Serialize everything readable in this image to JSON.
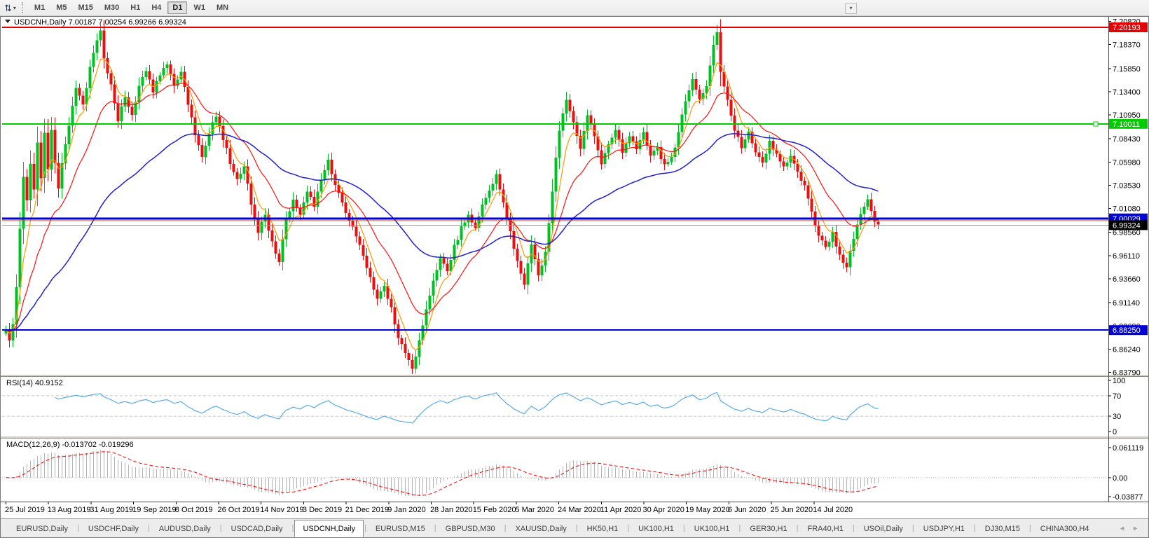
{
  "toolbar": {
    "timeframes": [
      "M1",
      "M5",
      "M15",
      "M30",
      "H1",
      "H4",
      "D1",
      "W1",
      "MN"
    ],
    "active_timeframe": "D1",
    "window_icon": "arrange-windows",
    "caret": "▾",
    "overflow_caret": "▾"
  },
  "window": {
    "title": "USDCNH,Daily",
    "ohlc_text": "7.00187 7.00254 6.99266 6.99324"
  },
  "chart_data": {
    "type": "candlestick",
    "symbol": "USDCNH",
    "timeframe": "Daily",
    "ohlc": {
      "open": 7.00187,
      "high": 7.00254,
      "low": 6.99266,
      "close": 6.99324
    },
    "ylim": [
      6.8379,
      7.2082
    ],
    "y_ticks": [
      "7.20820",
      "7.18370",
      "7.15850",
      "7.13400",
      "7.10950",
      "7.08430",
      "7.05980",
      "7.03530",
      "7.01080",
      "6.98560",
      "6.96110",
      "6.93660",
      "6.91140",
      "6.88690",
      "6.86240",
      "6.83790"
    ],
    "x_labels": [
      "25 Jul 2019",
      "13 Aug 2019",
      "31 Aug 2019",
      "19 Sep 2019",
      "8 Oct 2019",
      "26 Oct 2019",
      "14 Nov 2019",
      "3 Dec 2019",
      "21 Dec 2019",
      "9 Jan 2020",
      "28 Jan 2020",
      "15 Feb 2020",
      "5 Mar 2020",
      "24 Mar 2020",
      "11 Apr 2020",
      "30 Apr 2020",
      "19 May 2020",
      "6 Jun 2020",
      "25 Jun 2020",
      "14 Jul 2020"
    ],
    "h_lines": [
      {
        "price": 7.20193,
        "label": "7.20193",
        "color": "#e60000",
        "width": 2
      },
      {
        "price": 7.10011,
        "label": "7.10011",
        "color": "#00cc00",
        "width": 2,
        "handle": true
      },
      {
        "price": 7.00029,
        "label": "7.00029",
        "color": "#0000d8",
        "width": 3
      },
      {
        "price": 6.8825,
        "label": "6.88250",
        "color": "#0000d8",
        "width": 2
      }
    ],
    "ask_line": {
      "price": 6.998,
      "color": "#c05010",
      "width": 1
    },
    "bid_line": {
      "price": 6.99324,
      "label": "6.99324",
      "color": "#9a9a9a",
      "width": 1,
      "label_bg": "#000000"
    },
    "indicators": {
      "rsi": {
        "label": "RSI(14) 40.9152",
        "period": 14,
        "value": 40.9152,
        "levels": [
          70,
          30
        ],
        "scale": [
          "100",
          "70",
          "30",
          "0"
        ]
      },
      "macd": {
        "label": "MACD(12,26,9) -0.013702 -0.019296",
        "macd_value": -0.013702,
        "signal_value": -0.019296,
        "scale_max": "0.061119",
        "scale_mid": "0.00",
        "scale_min": "-0.03877"
      }
    },
    "moving_averages": [
      {
        "name": "fast",
        "period": 6,
        "color": "#ff9900"
      },
      {
        "name": "medium",
        "period": 18,
        "color": "#ff1111"
      },
      {
        "name": "slow",
        "period": 55,
        "color": "#2020cc"
      }
    ],
    "candle_count": 250,
    "close_anchors": [
      0,
      6.885,
      1,
      6.872,
      2,
      6.888,
      3,
      6.93,
      4,
      6.99,
      5,
      7.045,
      6,
      7.02,
      7,
      7.06,
      8,
      7.03,
      9,
      7.08,
      10,
      7.045,
      11,
      7.09,
      12,
      7.05,
      13,
      7.095,
      14,
      7.06,
      15,
      7.03,
      16,
      7.06,
      18,
      7.1,
      20,
      7.14,
      22,
      7.12,
      24,
      7.16,
      26,
      7.19,
      27,
      7.196,
      28,
      7.17,
      30,
      7.14,
      32,
      7.105,
      34,
      7.13,
      36,
      7.11,
      38,
      7.14,
      40,
      7.155,
      42,
      7.135,
      44,
      7.15,
      46,
      7.165,
      48,
      7.14,
      50,
      7.155,
      52,
      7.12,
      54,
      7.09,
      56,
      7.065,
      58,
      7.09,
      60,
      7.11,
      62,
      7.085,
      64,
      7.06,
      66,
      7.04,
      68,
      7.055,
      70,
      7.015,
      72,
      6.985,
      74,
      7.005,
      76,
      6.975,
      78,
      6.955,
      80,
      7.0,
      82,
      7.02,
      84,
      7.005,
      86,
      7.03,
      88,
      7.015,
      90,
      7.04,
      92,
      7.06,
      94,
      7.035,
      96,
      7.015,
      98,
      7.0,
      100,
      6.98,
      102,
      6.96,
      104,
      6.94,
      106,
      6.915,
      108,
      6.93,
      110,
      6.905,
      112,
      6.875,
      114,
      6.86,
      116,
      6.842,
      118,
      6.87,
      120,
      6.905,
      122,
      6.935,
      124,
      6.96,
      126,
      6.945,
      128,
      6.97,
      130,
      6.99,
      132,
      7.005,
      134,
      6.99,
      136,
      7.015,
      138,
      7.03,
      140,
      7.045,
      142,
      7.015,
      144,
      6.985,
      146,
      6.955,
      148,
      6.93,
      150,
      6.975,
      152,
      6.94,
      154,
      6.965,
      156,
      7.03,
      158,
      7.095,
      160,
      7.125,
      162,
      7.1,
      164,
      7.075,
      166,
      7.11,
      168,
      7.085,
      170,
      7.06,
      172,
      7.08,
      174,
      7.095,
      176,
      7.07,
      178,
      7.085,
      180,
      7.075,
      182,
      7.09,
      184,
      7.065,
      186,
      7.075,
      188,
      7.055,
      190,
      7.065,
      192,
      7.09,
      194,
      7.125,
      196,
      7.145,
      198,
      7.125,
      200,
      7.14,
      202,
      7.185,
      203,
      7.196,
      204,
      7.155,
      206,
      7.125,
      208,
      7.095,
      210,
      7.075,
      212,
      7.09,
      214,
      7.07,
      216,
      7.06,
      218,
      7.08,
      220,
      7.07,
      222,
      7.055,
      224,
      7.065,
      226,
      7.05,
      228,
      7.035,
      230,
      7.005,
      232,
      6.98,
      234,
      6.97,
      236,
      6.985,
      238,
      6.96,
      240,
      6.95,
      242,
      6.98,
      244,
      7.005,
      246,
      7.02,
      248,
      6.995,
      249,
      6.9932
    ],
    "colors": {
      "up": "#00c024",
      "down": "#e81010",
      "rsi": "#4da6e8",
      "macd_hist": "#b4b4b4",
      "macd_signal": "#ff0000",
      "levels": "#c8c8c8",
      "background": "#ffffff"
    }
  },
  "tabs": {
    "items": [
      "EURUSD,Daily",
      "USDCHF,Daily",
      "AUDUSD,Daily",
      "USDCAD,Daily",
      "USDCNH,Daily",
      "EURUSD,M15",
      "GBPUSD,M30",
      "XAUUSD,Daily",
      "HK50,H1",
      "UK100,H1",
      "UK100,H1",
      "GER30,H1",
      "FRA40,H1",
      "USOil,Daily",
      "USDJPY,H1",
      "DJ30,M15",
      "CHINA300,H4"
    ],
    "active": "USDCNH,Daily",
    "scroll_left": "◄",
    "scroll_right": "►"
  }
}
